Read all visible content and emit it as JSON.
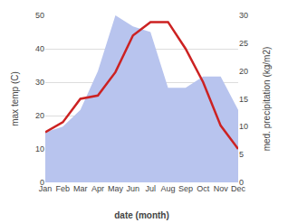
{
  "chart_data": {
    "type": "line",
    "categories": [
      "Jan",
      "Feb",
      "Mar",
      "Apr",
      "May",
      "Jun",
      "Jul",
      "Aug",
      "Sep",
      "Oct",
      "Nov",
      "Dec"
    ],
    "xlabel": "date (month)",
    "ylabel": "max temp (C)",
    "y2label": "med. precipitation (kg/m2)",
    "series": [
      {
        "type": "area",
        "axis": "y2",
        "color": "#b8c4ee",
        "values": [
          9,
          10,
          13,
          20,
          30,
          28,
          27,
          17,
          17,
          19,
          19,
          13
        ]
      },
      {
        "type": "line",
        "color": "#cc2222",
        "values": [
          15,
          18,
          25,
          26,
          33,
          44,
          48,
          48,
          40,
          30,
          17,
          10
        ]
      }
    ],
    "ylim": [
      0,
      50
    ],
    "yticks": [
      0,
      10,
      20,
      30,
      40,
      50
    ],
    "y2lim": [
      0,
      30
    ],
    "y2ticks": [
      0,
      5,
      10,
      15,
      20,
      25,
      30
    ],
    "grid": true
  }
}
